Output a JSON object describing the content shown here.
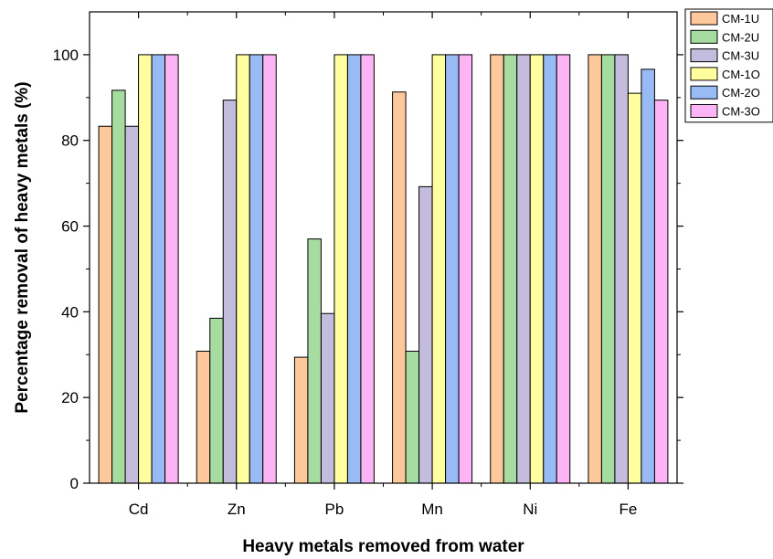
{
  "chart_data": {
    "type": "bar",
    "title": "",
    "xlabel": "Heavy metals removed from water",
    "ylabel": "Percentage removal of heavy metals (%)",
    "ylim": [
      0,
      110
    ],
    "yticks": [
      0,
      20,
      40,
      60,
      80,
      100
    ],
    "categories": [
      "Cd",
      "Zn",
      "Pb",
      "Mn",
      "Ni",
      "Fe"
    ],
    "legend_position": "top-right",
    "grid": false,
    "series": [
      {
        "name": "CM-1U",
        "color": "#FDC89C",
        "values": [
          83.3,
          30.8,
          29.4,
          91.3,
          100,
          100
        ]
      },
      {
        "name": "CM-2U",
        "color": "#A6DCA0",
        "values": [
          91.7,
          38.5,
          57.0,
          30.8,
          100,
          100
        ]
      },
      {
        "name": "CM-3U",
        "color": "#C4BCDC",
        "values": [
          83.3,
          89.4,
          39.6,
          69.2,
          100,
          100
        ]
      },
      {
        "name": "CM-1O",
        "color": "#FFFFA0",
        "values": [
          100,
          100,
          100,
          100,
          100,
          91.0
        ]
      },
      {
        "name": "CM-2O",
        "color": "#99BBF5",
        "values": [
          100,
          100,
          100,
          100,
          100,
          96.6
        ]
      },
      {
        "name": "CM-3O",
        "color": "#FCB4F4",
        "values": [
          100,
          100,
          100,
          100,
          100,
          89.4
        ]
      }
    ]
  }
}
